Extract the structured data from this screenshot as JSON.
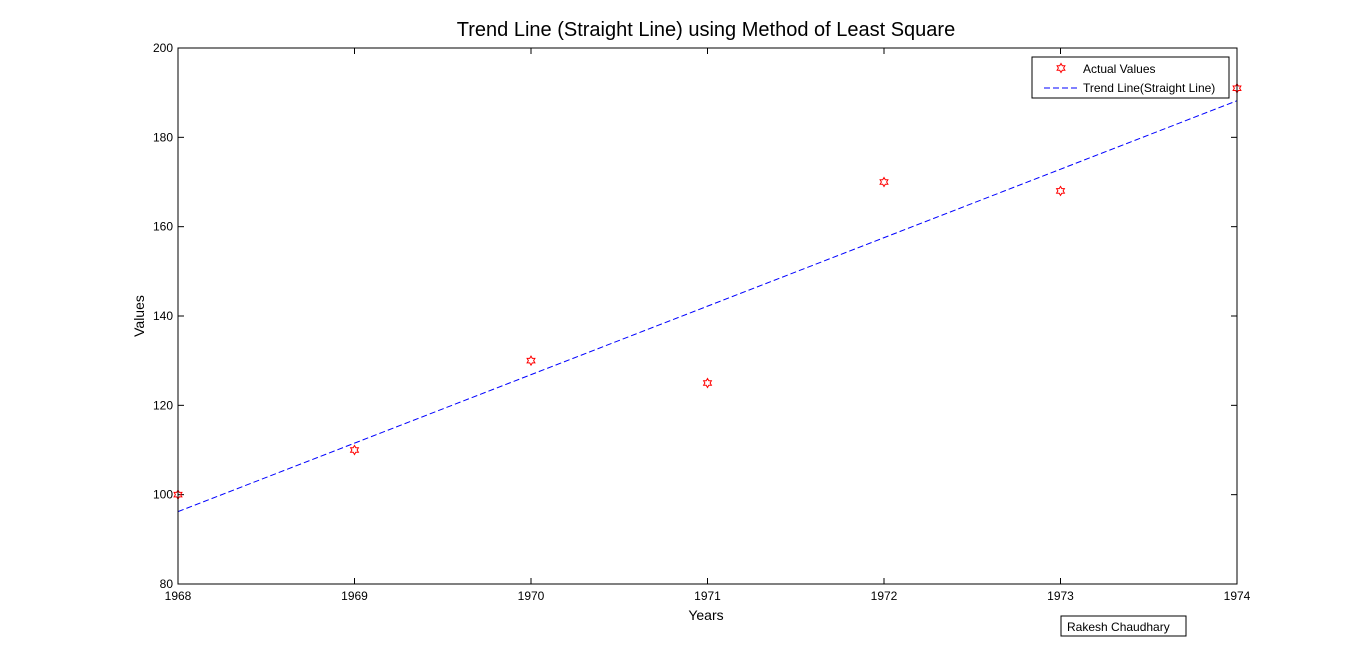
{
  "chart_data": {
    "type": "line",
    "title": "Trend Line (Straight Line) using Method of Least Square",
    "xlabel": "Years",
    "ylabel": "Values",
    "xlim": [
      1968,
      1974
    ],
    "ylim": [
      80,
      200
    ],
    "xticks": [
      1968,
      1969,
      1970,
      1971,
      1972,
      1973,
      1974
    ],
    "yticks": [
      80,
      100,
      120,
      140,
      160,
      180,
      200
    ],
    "grid": false,
    "legend_position": "top-right",
    "series": [
      {
        "name": "Actual Values",
        "style": "markers",
        "marker": "hexagram",
        "color": "#ff0000",
        "x": [
          1968,
          1969,
          1970,
          1971,
          1972,
          1973,
          1974
        ],
        "y": [
          100,
          110,
          130,
          125,
          170,
          168,
          191
        ]
      },
      {
        "name": "Trend Line(Straight Line)",
        "style": "dashed-line",
        "color": "#0000ff",
        "x": [
          1968,
          1974
        ],
        "y": [
          96.2,
          188.2
        ]
      }
    ],
    "annotation": "Rakesh Chaudhary"
  }
}
